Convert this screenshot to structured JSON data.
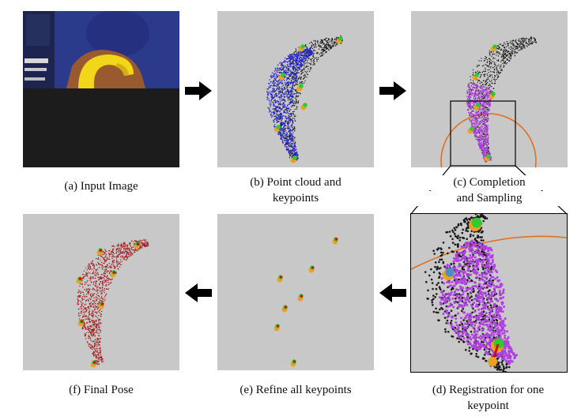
{
  "panels": {
    "a": {
      "caption": "(a) Input Image"
    },
    "b": {
      "caption_line1": "(b) Point cloud and",
      "caption_line2": "keypoints"
    },
    "c": {
      "caption_line1": "(c) Completion",
      "caption_line2": "and Sampling"
    },
    "d": {
      "caption_line1": "(d) Registration for one",
      "caption_line2": "keypoint"
    },
    "e": {
      "caption": "(e) Refine all keypoints"
    },
    "f": {
      "caption": "(f) Final Pose"
    }
  },
  "colors": {
    "panel_bg": "#c8c8c8",
    "black_points": "#1a1a1a",
    "blue_points": "#2222cc",
    "purple_points": "#b040e0",
    "red_points": "#a01818",
    "keypoint_green": "#2ecc2e",
    "keypoint_orange": "#f0a020",
    "keypoint_red": "#cc1010",
    "sampling_circle": "#e07020",
    "arrow": "#000000"
  }
}
